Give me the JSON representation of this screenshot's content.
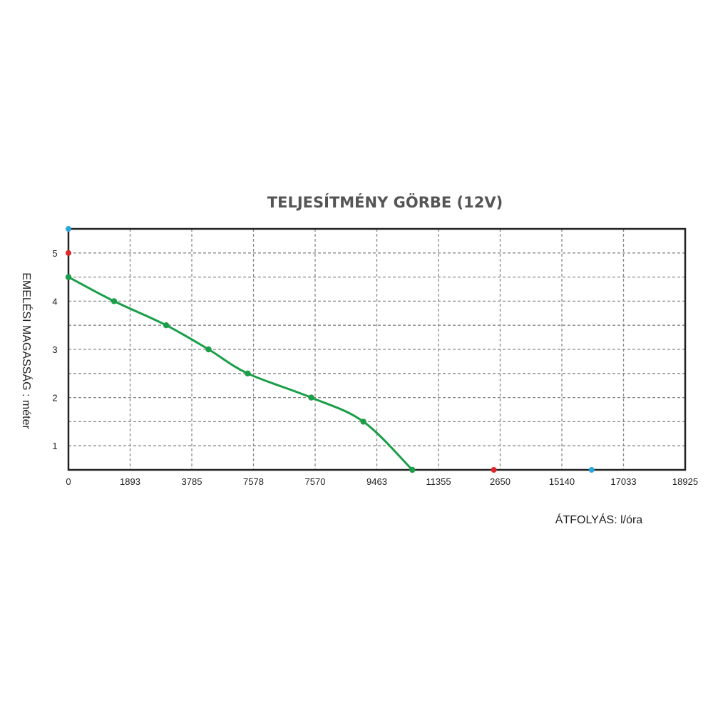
{
  "chart_data": {
    "type": "line",
    "title": "TELJESÍTMÉNY GÖRBE (12V)",
    "xlabel": "ÁTFOLYÁS: l/óra",
    "ylabel": "EMELÉSI MAGASSÁG : méter",
    "x_tick_labels": [
      "0",
      "1893",
      "3785",
      "7578",
      "7570",
      "9463",
      "11355",
      "2650",
      "15140",
      "17033",
      "18925"
    ],
    "y_tick_labels": [
      "1",
      "2",
      "3",
      "4",
      "5"
    ],
    "ylim": [
      0.5,
      5.5
    ],
    "y_gridlines": [
      1,
      1.5,
      2,
      2.5,
      3,
      3.5,
      4,
      4.5,
      5
    ],
    "grid": true,
    "series": [
      {
        "color": "#1a9e48",
        "points": [
          {
            "x": 0,
            "y": 4.5
          },
          {
            "x": 1400,
            "y": 4.0
          },
          {
            "x": 3000,
            "y": 3.5
          },
          {
            "x": 4300,
            "y": 3.0
          },
          {
            "x": 5500,
            "y": 2.5
          },
          {
            "x": 7450,
            "y": 2.0
          },
          {
            "x": 9050,
            "y": 1.5
          },
          {
            "x": 10550,
            "y": 0.5
          }
        ]
      }
    ],
    "markers": [
      {
        "x": 0,
        "y": 5.5,
        "color": "#2aa7e0"
      },
      {
        "x": 0,
        "y": 5.0,
        "color": "#e0262b"
      },
      {
        "x": 13050,
        "y": 0.5,
        "color": "#e0262b"
      },
      {
        "x": 16050,
        "y": 0.5,
        "color": "#2aa7e0"
      }
    ]
  }
}
